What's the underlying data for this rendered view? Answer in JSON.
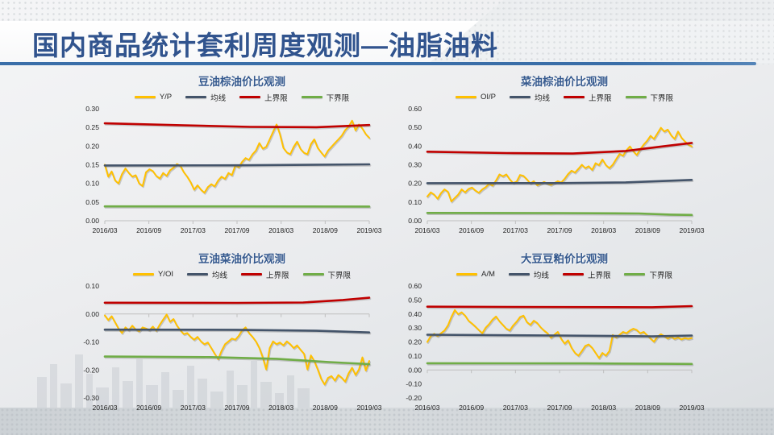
{
  "page": {
    "title": "国内商品统计套利周度观测—油脂油料"
  },
  "colors": {
    "title_text": "#31548E",
    "underline_blue": "#3A6EA8",
    "chart_title_blue": "#35598E",
    "series_main": "#FFC000",
    "series_mean": "#44546A",
    "series_upper": "#C00000",
    "series_lower": "#70AD47",
    "axis_line": "#BFBFBF",
    "axis_text": "#1F1F1F"
  },
  "chart_data": [
    {
      "type": "line",
      "key": "soy-palm",
      "title": "豆油棕油价比观测",
      "legend": [
        "Y/P",
        "均线",
        "上界限",
        "下界限"
      ],
      "legend_position": "top",
      "grid": false,
      "x_labels": [
        "2016/03",
        "2016/09",
        "2017/03",
        "2017/09",
        "2018/03",
        "2018/09",
        "2019/03"
      ],
      "ylim": [
        0,
        0.3
      ],
      "ystep": 0.05,
      "series": [
        {
          "name": "Y/P",
          "color_key": "series_main",
          "values": [
            0.15,
            0.118,
            0.132,
            0.108,
            0.1,
            0.125,
            0.14,
            0.128,
            0.118,
            0.122,
            0.1,
            0.093,
            0.13,
            0.138,
            0.133,
            0.12,
            0.113,
            0.128,
            0.12,
            0.135,
            0.142,
            0.152,
            0.147,
            0.13,
            0.118,
            0.103,
            0.083,
            0.095,
            0.083,
            0.075,
            0.09,
            0.098,
            0.092,
            0.108,
            0.118,
            0.112,
            0.128,
            0.122,
            0.148,
            0.143,
            0.158,
            0.168,
            0.163,
            0.178,
            0.188,
            0.208,
            0.193,
            0.198,
            0.218,
            0.238,
            0.258,
            0.232,
            0.195,
            0.183,
            0.178,
            0.198,
            0.212,
            0.192,
            0.182,
            0.178,
            0.205,
            0.218,
            0.195,
            0.183,
            0.172,
            0.188,
            0.198,
            0.208,
            0.218,
            0.228,
            0.243,
            0.252,
            0.268,
            0.242,
            0.258,
            0.247,
            0.232,
            0.222
          ]
        },
        {
          "name": "均线",
          "color_key": "series_mean",
          "points": [
            [
              0,
              0.148
            ],
            [
              0.5,
              0.1485
            ],
            [
              1,
              0.151
            ]
          ]
        },
        {
          "name": "上界限",
          "color_key": "series_upper",
          "points": [
            [
              0,
              0.261
            ],
            [
              0.3,
              0.2555
            ],
            [
              0.55,
              0.2515
            ],
            [
              0.8,
              0.2505
            ],
            [
              1,
              0.2565
            ]
          ]
        },
        {
          "name": "下界限",
          "color_key": "series_lower",
          "points": [
            [
              0,
              0.0385
            ],
            [
              0.5,
              0.0385
            ],
            [
              1,
              0.038
            ]
          ]
        }
      ]
    },
    {
      "type": "line",
      "key": "rapeseed-palm",
      "title": "菜油棕油价比观测",
      "legend": [
        "OI/P",
        "均线",
        "上界限",
        "下界限"
      ],
      "legend_position": "top",
      "grid": false,
      "x_labels": [
        "2016/03",
        "2016/09",
        "2017/03",
        "2017/09",
        "2018/03",
        "2018/09",
        "2019/03"
      ],
      "ylim": [
        0,
        0.6
      ],
      "ystep": 0.1,
      "series": [
        {
          "name": "OI/P",
          "color_key": "series_main",
          "values": [
            0.13,
            0.152,
            0.14,
            0.118,
            0.148,
            0.168,
            0.155,
            0.103,
            0.122,
            0.14,
            0.168,
            0.152,
            0.17,
            0.178,
            0.162,
            0.15,
            0.168,
            0.18,
            0.198,
            0.188,
            0.215,
            0.248,
            0.238,
            0.248,
            0.222,
            0.202,
            0.21,
            0.245,
            0.24,
            0.222,
            0.2,
            0.212,
            0.19,
            0.198,
            0.208,
            0.198,
            0.192,
            0.202,
            0.212,
            0.205,
            0.225,
            0.25,
            0.268,
            0.258,
            0.278,
            0.3,
            0.282,
            0.292,
            0.272,
            0.308,
            0.298,
            0.328,
            0.298,
            0.282,
            0.3,
            0.33,
            0.358,
            0.348,
            0.378,
            0.398,
            0.372,
            0.352,
            0.382,
            0.408,
            0.428,
            0.455,
            0.438,
            0.468,
            0.498,
            0.478,
            0.488,
            0.458,
            0.438,
            0.478,
            0.445,
            0.425,
            0.408,
            0.398
          ]
        },
        {
          "name": "均线",
          "color_key": "series_mean",
          "points": [
            [
              0,
              0.201
            ],
            [
              0.5,
              0.2015
            ],
            [
              0.75,
              0.2055
            ],
            [
              1,
              0.219
            ]
          ]
        },
        {
          "name": "上界限",
          "color_key": "series_upper",
          "points": [
            [
              0,
              0.37
            ],
            [
              0.3,
              0.3625
            ],
            [
              0.55,
              0.36
            ],
            [
              0.75,
              0.374
            ],
            [
              0.9,
              0.4
            ],
            [
              1,
              0.417
            ]
          ]
        },
        {
          "name": "下界限",
          "color_key": "series_lower",
          "points": [
            [
              0,
              0.042
            ],
            [
              0.5,
              0.041
            ],
            [
              0.8,
              0.039
            ],
            [
              0.92,
              0.033
            ],
            [
              1,
              0.031
            ]
          ]
        }
      ]
    },
    {
      "type": "line",
      "key": "soy-rapeseed",
      "title": "豆油菜油价比观测",
      "legend": [
        "Y/OI",
        "均线",
        "上界限",
        "下界限"
      ],
      "legend_position": "top",
      "grid": false,
      "x_labels": [
        "2016/03",
        "2016/09",
        "2017/03",
        "2017/09",
        "2018/03",
        "2018/09",
        "2019/03"
      ],
      "ylim": [
        -0.3,
        0.1
      ],
      "ystep": 0.1,
      "series": [
        {
          "name": "Y/OI",
          "color_key": "series_main",
          "values": [
            -0.005,
            -0.022,
            -0.008,
            -0.03,
            -0.052,
            -0.068,
            -0.048,
            -0.058,
            -0.042,
            -0.055,
            -0.062,
            -0.048,
            -0.052,
            -0.058,
            -0.045,
            -0.06,
            -0.038,
            -0.02,
            -0.002,
            -0.028,
            -0.018,
            -0.042,
            -0.058,
            -0.072,
            -0.068,
            -0.082,
            -0.092,
            -0.082,
            -0.098,
            -0.108,
            -0.102,
            -0.122,
            -0.142,
            -0.162,
            -0.132,
            -0.108,
            -0.098,
            -0.088,
            -0.092,
            -0.078,
            -0.058,
            -0.048,
            -0.068,
            -0.082,
            -0.098,
            -0.122,
            -0.155,
            -0.198,
            -0.122,
            -0.098,
            -0.108,
            -0.102,
            -0.112,
            -0.098,
            -0.108,
            -0.122,
            -0.112,
            -0.128,
            -0.142,
            -0.198,
            -0.148,
            -0.168,
            -0.198,
            -0.232,
            -0.252,
            -0.228,
            -0.222,
            -0.238,
            -0.218,
            -0.228,
            -0.242,
            -0.212,
            -0.192,
            -0.218,
            -0.198,
            -0.155,
            -0.202,
            -0.168
          ]
        },
        {
          "name": "均线",
          "color_key": "series_mean",
          "points": [
            [
              0,
              -0.056
            ],
            [
              0.5,
              -0.0565
            ],
            [
              0.8,
              -0.06
            ],
            [
              1,
              -0.066
            ]
          ]
        },
        {
          "name": "上界限",
          "color_key": "series_upper",
          "points": [
            [
              0,
              0.04
            ],
            [
              0.5,
              0.0395
            ],
            [
              0.75,
              0.041
            ],
            [
              0.9,
              0.05
            ],
            [
              1,
              0.058
            ]
          ]
        },
        {
          "name": "下界限",
          "color_key": "series_lower",
          "points": [
            [
              0,
              -0.152
            ],
            [
              0.4,
              -0.154
            ],
            [
              0.65,
              -0.16
            ],
            [
              0.85,
              -0.172
            ],
            [
              1,
              -0.179
            ]
          ]
        }
      ]
    },
    {
      "type": "line",
      "key": "soybean-meal",
      "title": "大豆豆粕价比观测",
      "legend": [
        "A/M",
        "均线",
        "上界限",
        "下界限"
      ],
      "legend_position": "top",
      "grid": false,
      "x_labels": [
        "2016/03",
        "2016/09",
        "2017/03",
        "2017/09",
        "2018/03",
        "2018/09",
        "2019/03"
      ],
      "ylim": [
        -0.2,
        0.6
      ],
      "ystep": 0.1,
      "series": [
        {
          "name": "A/M",
          "color_key": "series_main",
          "values": [
            0.2,
            0.242,
            0.258,
            0.242,
            0.262,
            0.282,
            0.318,
            0.378,
            0.428,
            0.398,
            0.412,
            0.388,
            0.352,
            0.332,
            0.31,
            0.285,
            0.262,
            0.302,
            0.328,
            0.36,
            0.382,
            0.348,
            0.322,
            0.295,
            0.282,
            0.318,
            0.345,
            0.378,
            0.388,
            0.342,
            0.322,
            0.352,
            0.335,
            0.305,
            0.282,
            0.262,
            0.23,
            0.252,
            0.272,
            0.222,
            0.188,
            0.212,
            0.158,
            0.122,
            0.102,
            0.135,
            0.172,
            0.182,
            0.158,
            0.122,
            0.085,
            0.122,
            0.102,
            0.135,
            0.25,
            0.232,
            0.252,
            0.272,
            0.262,
            0.282,
            0.295,
            0.285,
            0.262,
            0.272,
            0.248,
            0.225,
            0.202,
            0.238,
            0.255,
            0.242,
            0.225,
            0.238,
            0.222,
            0.232,
            0.218,
            0.228,
            0.222,
            0.228
          ]
        },
        {
          "name": "均线",
          "color_key": "series_mean",
          "points": [
            [
              0,
              0.252
            ],
            [
              0.5,
              0.246
            ],
            [
              0.85,
              0.24
            ],
            [
              1,
              0.246
            ]
          ]
        },
        {
          "name": "上界限",
          "color_key": "series_upper",
          "points": [
            [
              0,
              0.452
            ],
            [
              0.5,
              0.449
            ],
            [
              0.85,
              0.448
            ],
            [
              1,
              0.456
            ]
          ]
        },
        {
          "name": "下界限",
          "color_key": "series_lower",
          "points": [
            [
              0,
              0.048
            ],
            [
              0.6,
              0.047
            ],
            [
              0.9,
              0.044
            ],
            [
              1,
              0.043
            ]
          ]
        }
      ]
    }
  ]
}
